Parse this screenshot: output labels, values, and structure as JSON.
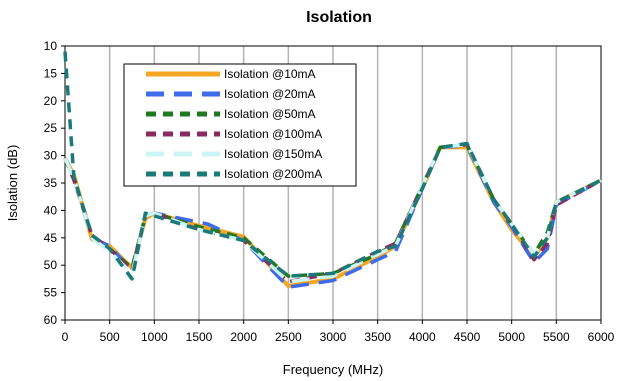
{
  "chart_data": {
    "type": "line",
    "title": "Isolation",
    "xlabel": "Frequency (MHz)",
    "ylabel": "Isolation (dB)",
    "xlim": [
      0,
      6000
    ],
    "ylim": [
      10,
      60
    ],
    "y_inverted": true,
    "x_ticks": [
      0,
      500,
      1000,
      1500,
      2000,
      2500,
      3000,
      3500,
      4000,
      4500,
      5000,
      5500,
      6000
    ],
    "y_ticks": [
      10,
      15,
      20,
      25,
      30,
      35,
      40,
      45,
      50,
      55,
      60
    ],
    "grid": "vertical",
    "legend_position": "top-left",
    "series": [
      {
        "name": "Isolation @10mA",
        "color": "#f5a623",
        "dash": "solid",
        "x": [
          0,
          100,
          300,
          500,
          750,
          900,
          1000,
          1500,
          2000,
          2500,
          3000,
          3500,
          3700,
          4000,
          4200,
          4500,
          4800,
          5000,
          5250,
          5400,
          5500,
          6000
        ],
        "y": [
          30.5,
          33.5,
          45.2,
          46.5,
          50.5,
          41.5,
          40.5,
          42.8,
          44.8,
          53.8,
          52.5,
          48.5,
          46.5,
          36,
          28.5,
          28.5,
          38.5,
          43.5,
          48.5,
          45,
          38.5,
          34.5
        ]
      },
      {
        "name": "Isolation @20mA",
        "color": "#3d6bea",
        "dash": "long",
        "x": [
          0,
          100,
          300,
          500,
          750,
          900,
          1000,
          1600,
          2000,
          2500,
          3000,
          3500,
          3700,
          4000,
          4200,
          4500,
          4800,
          5000,
          5250,
          5400,
          5500,
          6000
        ],
        "y": [
          30.5,
          34,
          45,
          46.5,
          51,
          41,
          40.5,
          42.5,
          45.5,
          54,
          52.8,
          49,
          47.5,
          36,
          28.5,
          28.2,
          38.5,
          43,
          49.5,
          47,
          39,
          34.5
        ]
      },
      {
        "name": "Isolation @50mA",
        "color": "#1f7a1f",
        "dash": "medium",
        "x": [
          0,
          100,
          300,
          500,
          750,
          900,
          1000,
          1500,
          2000,
          2500,
          3000,
          3500,
          3700,
          4000,
          4200,
          4500,
          4800,
          5000,
          5250,
          5400,
          5500,
          6000
        ],
        "y": [
          30.5,
          34,
          44.5,
          47,
          50.5,
          41,
          40.5,
          43,
          45,
          52,
          51.5,
          48,
          46,
          35.5,
          28.5,
          28,
          38,
          42.5,
          48,
          44,
          38.5,
          34.5
        ]
      },
      {
        "name": "Isolation @100mA",
        "color": "#8b2a5e",
        "dash": "medium",
        "x": [
          0,
          100,
          300,
          500,
          750,
          900,
          1000,
          1500,
          2000,
          2500,
          3000,
          3500,
          3700,
          4000,
          4200,
          4500,
          4800,
          5000,
          5250,
          5400,
          5500,
          6000
        ],
        "y": [
          30.5,
          34.5,
          44.5,
          47,
          51,
          41,
          40.5,
          43.5,
          45.5,
          53,
          51.5,
          47.5,
          46,
          35.5,
          28.5,
          28,
          38,
          42.5,
          49,
          46,
          39,
          34.5
        ]
      },
      {
        "name": "Isolation @150mA",
        "color": "#ccf5f5",
        "dash": "long",
        "x": [
          0,
          100,
          300,
          500,
          750,
          900,
          1000,
          1500,
          2000,
          2500,
          3000,
          3500,
          3700,
          4000,
          4200,
          4500,
          4800,
          5000,
          5250,
          5400,
          5500,
          6000
        ],
        "y": [
          30.5,
          34,
          45,
          47.5,
          51.5,
          41,
          40.5,
          43.5,
          45.5,
          53,
          52,
          48,
          46.5,
          35.5,
          28.5,
          28,
          38,
          42.5,
          48,
          45,
          38.5,
          34.5
        ]
      },
      {
        "name": "Isolation @200mA",
        "color": "#1a7a7a",
        "dash": "medium",
        "x": [
          0,
          100,
          300,
          500,
          750,
          900,
          1000,
          1500,
          2000,
          2500,
          3000,
          3500,
          3700,
          4000,
          4200,
          4500,
          4800,
          5000,
          5250,
          5400,
          5500,
          6000
        ],
        "y": [
          11,
          34,
          44.5,
          47,
          52.5,
          40.5,
          41,
          43.5,
          45.5,
          52,
          51.5,
          47.5,
          46.5,
          36,
          28.5,
          27.8,
          38,
          42.5,
          48.5,
          45,
          38.5,
          34.5
        ]
      }
    ]
  }
}
